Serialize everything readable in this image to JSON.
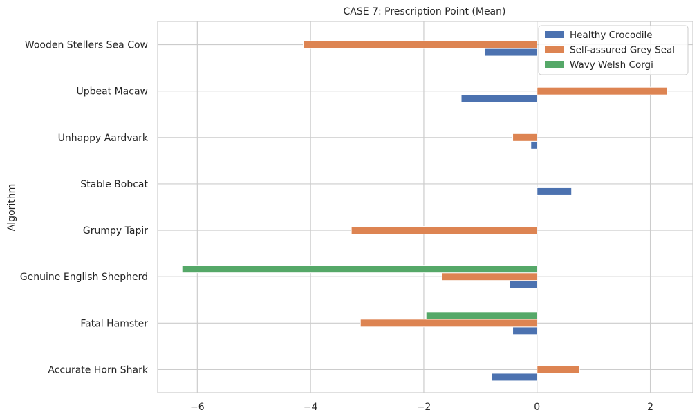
{
  "chart_data": {
    "type": "bar",
    "orientation": "horizontal",
    "title": "CASE 7: Prescription Point (Mean)",
    "xlabel": "",
    "ylabel": "Algorithm",
    "xlim": [
      -6.7,
      2.75
    ],
    "xticks": [
      -6,
      -4,
      -2,
      0,
      2
    ],
    "xtick_labels": [
      "−6",
      "−4",
      "−2",
      "0",
      "2"
    ],
    "grid": true,
    "legend_position": "top-right",
    "categories": [
      "Accurate Horn Shark",
      "Fatal Hamster",
      "Genuine English Shepherd",
      "Grumpy Tapir",
      "Stable Bobcat",
      "Unhappy Aardvark",
      "Upbeat Macaw",
      "Wooden Stellers Sea Cow"
    ],
    "series": [
      {
        "name": "Healthy Crocodile",
        "color": "#4c72b0",
        "values": [
          -0.8,
          -0.43,
          -0.49,
          0.0,
          0.61,
          -0.11,
          -1.34,
          -0.92
        ]
      },
      {
        "name": "Self-assured Grey Seal",
        "color": "#dd8452",
        "values": [
          0.75,
          -3.12,
          -1.68,
          -3.28,
          0.0,
          -0.43,
          2.3,
          -4.13
        ]
      },
      {
        "name": "Wavy Welsh Corgi",
        "color": "#55a868",
        "values": [
          0.0,
          -1.96,
          -6.27,
          0.0,
          0.0,
          0.0,
          0.0,
          0.0
        ]
      }
    ]
  }
}
